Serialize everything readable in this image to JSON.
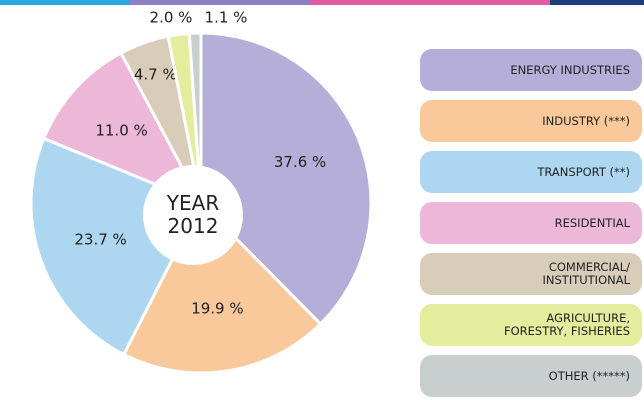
{
  "chart_data": {
    "type": "pie",
    "center_label": "YEAR\n2012",
    "categories": [
      "ENERGY INDUSTRIES",
      "INDUSTRY (***)",
      "TRANSPORT (**)",
      "RESIDENTIAL",
      "COMMERCIAL/\nINSTITUTIONAL",
      "AGRICULTURE,\nFORESTRY, FISHERIES",
      "OTHER (*****)"
    ],
    "values": [
      37.6,
      19.9,
      23.7,
      11.0,
      4.7,
      2.0,
      1.1
    ],
    "value_labels": [
      "37.6 %",
      "19.9 %",
      "23.7 %",
      "11.0 %",
      "4.7 %",
      "2.0 %",
      "1.1 %"
    ],
    "colors": [
      "#b4aed9",
      "#f9c99c",
      "#add7f1",
      "#edb7d7",
      "#d7cdb9",
      "#e4ec9e",
      "#c9cece"
    ]
  }
}
